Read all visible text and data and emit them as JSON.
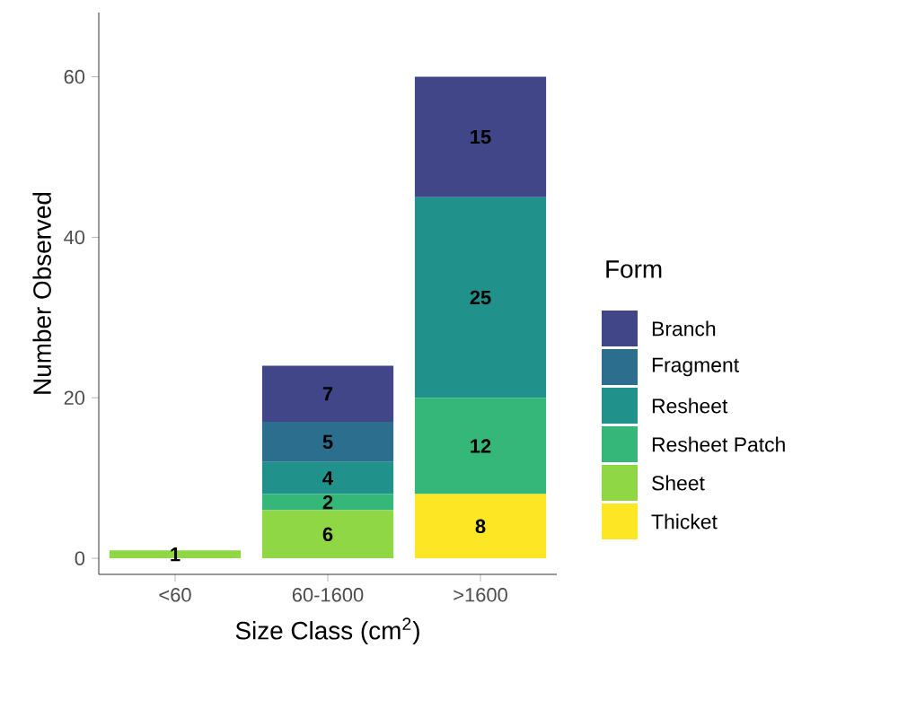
{
  "chart_data": {
    "type": "bar",
    "stacked": true,
    "xlabel": "Size Class (cm$^{2}$)",
    "ylabel": "Number Observed",
    "legend_title": "Form",
    "legend": "right",
    "data_labels": true,
    "grid": false,
    "categories": [
      "<60",
      "60-1600",
      ">1600"
    ],
    "ylim": [
      -2,
      68
    ],
    "yticks": [
      0,
      20,
      40,
      60
    ],
    "series": [
      {
        "name": "Thicket",
        "color": "#fde725",
        "values": [
          null,
          null,
          8
        ]
      },
      {
        "name": "Sheet",
        "color": "#8fd744",
        "values": [
          1,
          6,
          null
        ]
      },
      {
        "name": "Resheet Patch",
        "color": "#35b779",
        "values": [
          null,
          2,
          12
        ]
      },
      {
        "name": "Resheet",
        "color": "#21918c",
        "values": [
          null,
          4,
          25
        ]
      },
      {
        "name": "Fragment",
        "color": "#2c6e8e",
        "values": [
          null,
          5,
          null
        ]
      },
      {
        "name": "Branch",
        "color": "#404688",
        "values": [
          null,
          7,
          15
        ]
      }
    ]
  }
}
